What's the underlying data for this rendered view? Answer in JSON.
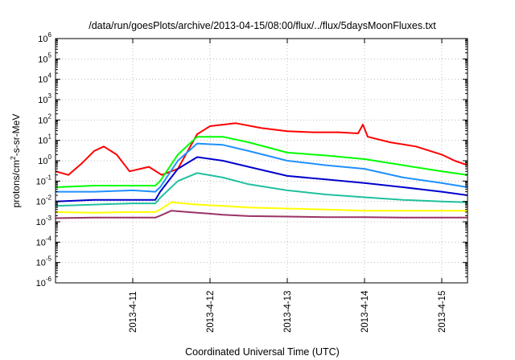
{
  "chart_data": {
    "type": "line",
    "title": "/data/run/goesPlots/archive/2013-04-15/08:00/flux/../flux/5daysMoonFluxes.txt",
    "xlabel": "Coordinated Universal Time (UTC)",
    "ylabel": {
      "base": "protons/cm",
      "sup": "2",
      "rest": "-s-sr-MeV"
    },
    "x_range": [
      "2013-04-10T00:00",
      "2013-04-15T08:00"
    ],
    "x_ticks": [
      "2013-4-11",
      "2013-4-12",
      "2013-4-13",
      "2013-4-14",
      "2013-4-15"
    ],
    "y_scale": "log",
    "ylim": [
      1e-06,
      1000000.0
    ],
    "y_tick_exponents": [
      -6,
      -5,
      -4,
      -3,
      -2,
      -1,
      0,
      1,
      2,
      3,
      4,
      5,
      6
    ],
    "grid": true,
    "legend": "none",
    "series": [
      {
        "color": "#ff0000",
        "x": [
          "2013-04-10T00:00",
          "2013-04-10T04:00",
          "2013-04-10T08:00",
          "2013-04-10T12:00",
          "2013-04-10T15:00",
          "2013-04-10T19:00",
          "2013-04-10T23:00",
          "2013-04-11T05:00",
          "2013-04-11T09:00",
          "2013-04-11T14:00",
          "2013-04-11T20:00",
          "2013-04-12T00:00",
          "2013-04-12T08:00",
          "2013-04-12T16:00",
          "2013-04-13T00:00",
          "2013-04-13T08:00",
          "2013-04-13T16:00",
          "2013-04-13T22:00",
          "2013-04-13T23:30",
          "2013-04-14T01:00",
          "2013-04-14T08:00",
          "2013-04-14T16:00",
          "2013-04-15T00:00",
          "2013-04-15T04:00",
          "2013-04-15T08:00"
        ],
        "y": [
          0.3,
          0.2,
          0.7,
          3,
          5,
          2,
          0.3,
          0.5,
          0.2,
          0.4,
          20,
          50,
          70,
          40,
          28,
          25,
          25,
          22,
          60,
          15,
          8,
          5,
          2,
          1,
          0.6
        ]
      },
      {
        "color": "#00ff00",
        "x": [
          "2013-04-10T00:00",
          "2013-04-10T12:00",
          "2013-04-11T00:00",
          "2013-04-11T07:00",
          "2013-04-11T08:30",
          "2013-04-11T14:00",
          "2013-04-11T20:00",
          "2013-04-12T04:00",
          "2013-04-12T12:00",
          "2013-04-13T00:00",
          "2013-04-13T12:00",
          "2013-04-14T00:00",
          "2013-04-14T12:00",
          "2013-04-15T00:00",
          "2013-04-15T08:00"
        ],
        "y": [
          0.05,
          0.06,
          0.06,
          0.06,
          0.1,
          2,
          15,
          15,
          8,
          2.5,
          1.8,
          1.2,
          0.6,
          0.3,
          0.2
        ]
      },
      {
        "color": "#1e90ff",
        "x": [
          "2013-04-10T00:00",
          "2013-04-10T12:00",
          "2013-04-11T00:00",
          "2013-04-11T07:00",
          "2013-04-11T08:30",
          "2013-04-11T14:00",
          "2013-04-11T20:00",
          "2013-04-12T04:00",
          "2013-04-12T12:00",
          "2013-04-13T00:00",
          "2013-04-13T12:00",
          "2013-04-14T00:00",
          "2013-04-14T12:00",
          "2013-04-15T00:00",
          "2013-04-15T08:00"
        ],
        "y": [
          0.03,
          0.03,
          0.035,
          0.03,
          0.05,
          1,
          7,
          6,
          3,
          1,
          0.6,
          0.4,
          0.15,
          0.08,
          0.05
        ]
      },
      {
        "color": "#0000cd",
        "x": [
          "2013-04-10T00:00",
          "2013-04-10T12:00",
          "2013-04-11T00:00",
          "2013-04-11T07:00",
          "2013-04-11T08:30",
          "2013-04-11T14:00",
          "2013-04-11T20:00",
          "2013-04-12T04:00",
          "2013-04-12T12:00",
          "2013-04-13T00:00",
          "2013-04-13T12:00",
          "2013-04-14T00:00",
          "2013-04-14T12:00",
          "2013-04-15T00:00",
          "2013-04-15T08:00"
        ],
        "y": [
          0.01,
          0.012,
          0.012,
          0.012,
          0.03,
          0.4,
          1.5,
          1,
          0.5,
          0.18,
          0.12,
          0.08,
          0.05,
          0.03,
          0.02
        ]
      },
      {
        "color": "#20c0a0",
        "x": [
          "2013-04-10T00:00",
          "2013-04-10T12:00",
          "2013-04-11T00:00",
          "2013-04-11T07:00",
          "2013-04-11T08:30",
          "2013-04-11T14:00",
          "2013-04-11T20:00",
          "2013-04-12T04:00",
          "2013-04-12T12:00",
          "2013-04-13T00:00",
          "2013-04-13T12:00",
          "2013-04-14T00:00",
          "2013-04-14T12:00",
          "2013-04-15T00:00",
          "2013-04-15T08:00"
        ],
        "y": [
          0.006,
          0.007,
          0.008,
          0.008,
          0.015,
          0.1,
          0.25,
          0.15,
          0.07,
          0.035,
          0.022,
          0.016,
          0.012,
          0.01,
          0.009
        ]
      },
      {
        "color": "#ffff00",
        "x": [
          "2013-04-10T00:00",
          "2013-04-10T12:00",
          "2013-04-11T00:00",
          "2013-04-11T07:00",
          "2013-04-11T08:30",
          "2013-04-11T12:00",
          "2013-04-11T20:00",
          "2013-04-12T04:00",
          "2013-04-12T12:00",
          "2013-04-13T00:00",
          "2013-04-13T12:00",
          "2013-04-14T00:00",
          "2013-04-14T12:00",
          "2013-04-15T00:00",
          "2013-04-15T08:00"
        ],
        "y": [
          0.003,
          0.0028,
          0.003,
          0.003,
          0.004,
          0.009,
          0.007,
          0.006,
          0.005,
          0.0045,
          0.004,
          0.0035,
          0.0035,
          0.0035,
          0.0035
        ]
      },
      {
        "color": "#993366",
        "x": [
          "2013-04-10T00:00",
          "2013-04-10T12:00",
          "2013-04-11T00:00",
          "2013-04-11T07:00",
          "2013-04-11T08:30",
          "2013-04-11T12:00",
          "2013-04-11T20:00",
          "2013-04-12T04:00",
          "2013-04-12T12:00",
          "2013-04-13T00:00",
          "2013-04-13T12:00",
          "2013-04-14T00:00",
          "2013-04-14T12:00",
          "2013-04-15T00:00",
          "2013-04-15T08:00"
        ],
        "y": [
          0.0015,
          0.0016,
          0.0016,
          0.0016,
          0.002,
          0.0035,
          0.0028,
          0.0022,
          0.0019,
          0.0018,
          0.0017,
          0.0017,
          0.0016,
          0.0016,
          0.0016
        ]
      }
    ]
  }
}
